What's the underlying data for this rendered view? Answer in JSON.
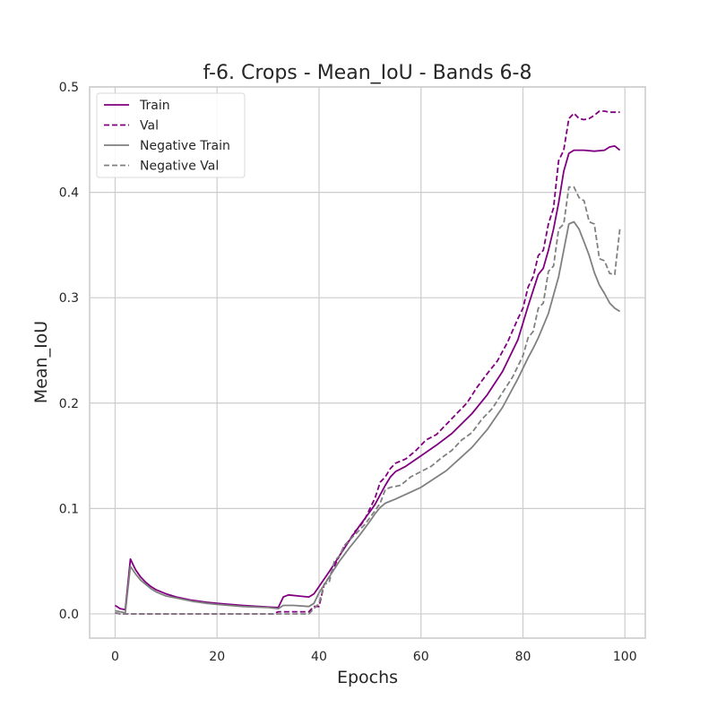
{
  "chart_data": {
    "type": "line",
    "title": "f-6. Crops - Mean_IoU - Bands 6-8",
    "xlabel": "Epochs",
    "ylabel": "Mean_IoU",
    "xlim": [
      -5,
      104
    ],
    "ylim": [
      -0.023,
      0.5
    ],
    "xticks": [
      0,
      20,
      40,
      60,
      80,
      100
    ],
    "xtick_labels": [
      "0",
      "20",
      "40",
      "60",
      "80",
      "100"
    ],
    "yticks": [
      0.0,
      0.1,
      0.2,
      0.3,
      0.4,
      0.5
    ],
    "ytick_labels": [
      "0.0",
      "0.1",
      "0.2",
      "0.3",
      "0.4",
      "0.5"
    ],
    "grid": true,
    "legend_position": "top-left",
    "series": [
      {
        "name": "Train",
        "color": "#800080",
        "dash": "solid",
        "points": [
          [
            0,
            0.008
          ],
          [
            1,
            0.005
          ],
          [
            2,
            0.004
          ],
          [
            3,
            0.052
          ],
          [
            4,
            0.042
          ],
          [
            5,
            0.035
          ],
          [
            6,
            0.03
          ],
          [
            7,
            0.026
          ],
          [
            8,
            0.023
          ],
          [
            10,
            0.019
          ],
          [
            12,
            0.016
          ],
          [
            15,
            0.013
          ],
          [
            18,
            0.011
          ],
          [
            20,
            0.01
          ],
          [
            25,
            0.008
          ],
          [
            30,
            0.0065
          ],
          [
            32,
            0.006
          ],
          [
            33,
            0.016
          ],
          [
            34,
            0.018
          ],
          [
            36,
            0.017
          ],
          [
            38,
            0.016
          ],
          [
            39,
            0.019
          ],
          [
            40,
            0.026
          ],
          [
            42,
            0.04
          ],
          [
            44,
            0.055
          ],
          [
            46,
            0.07
          ],
          [
            48,
            0.084
          ],
          [
            50,
            0.097
          ],
          [
            51,
            0.104
          ],
          [
            52,
            0.113
          ],
          [
            53,
            0.122
          ],
          [
            54,
            0.13
          ],
          [
            55,
            0.135
          ],
          [
            57,
            0.14
          ],
          [
            60,
            0.15
          ],
          [
            63,
            0.16
          ],
          [
            66,
            0.171
          ],
          [
            70,
            0.19
          ],
          [
            73,
            0.208
          ],
          [
            76,
            0.23
          ],
          [
            79,
            0.26
          ],
          [
            81,
            0.292
          ],
          [
            83,
            0.322
          ],
          [
            84,
            0.328
          ],
          [
            85,
            0.345
          ],
          [
            86,
            0.365
          ],
          [
            87,
            0.39
          ],
          [
            88,
            0.42
          ],
          [
            89,
            0.437
          ],
          [
            90,
            0.44
          ],
          [
            92,
            0.44
          ],
          [
            94,
            0.439
          ],
          [
            96,
            0.44
          ],
          [
            97,
            0.443
          ],
          [
            98,
            0.444
          ],
          [
            99,
            0.44
          ]
        ]
      },
      {
        "name": "Val",
        "color": "#800080",
        "dash": "dashed",
        "points": [
          [
            0,
            0.001
          ],
          [
            1,
            0.0
          ],
          [
            2,
            0.0
          ],
          [
            3,
            0.0
          ],
          [
            10,
            0.0
          ],
          [
            20,
            0.0
          ],
          [
            30,
            0.0
          ],
          [
            31,
            0.0
          ],
          [
            32,
            0.002
          ],
          [
            35,
            0.002
          ],
          [
            37,
            0.002
          ],
          [
            38,
            0.002
          ],
          [
            39,
            0.007
          ],
          [
            40,
            0.007
          ],
          [
            41,
            0.028
          ],
          [
            42,
            0.035
          ],
          [
            43,
            0.045
          ],
          [
            44,
            0.055
          ],
          [
            45,
            0.065
          ],
          [
            46,
            0.07
          ],
          [
            47,
            0.078
          ],
          [
            48,
            0.083
          ],
          [
            49,
            0.09
          ],
          [
            50,
            0.1
          ],
          [
            51,
            0.11
          ],
          [
            52,
            0.125
          ],
          [
            53,
            0.13
          ],
          [
            54,
            0.138
          ],
          [
            55,
            0.143
          ],
          [
            57,
            0.147
          ],
          [
            59,
            0.155
          ],
          [
            61,
            0.165
          ],
          [
            63,
            0.17
          ],
          [
            65,
            0.18
          ],
          [
            67,
            0.19
          ],
          [
            69,
            0.2
          ],
          [
            71,
            0.215
          ],
          [
            73,
            0.228
          ],
          [
            75,
            0.24
          ],
          [
            77,
            0.258
          ],
          [
            79,
            0.28
          ],
          [
            80,
            0.29
          ],
          [
            81,
            0.31
          ],
          [
            82,
            0.32
          ],
          [
            83,
            0.34
          ],
          [
            84,
            0.345
          ],
          [
            85,
            0.37
          ],
          [
            86,
            0.385
          ],
          [
            87,
            0.43
          ],
          [
            88,
            0.44
          ],
          [
            89,
            0.47
          ],
          [
            90,
            0.475
          ],
          [
            91,
            0.47
          ],
          [
            92,
            0.469
          ],
          [
            93,
            0.47
          ],
          [
            94,
            0.473
          ],
          [
            95,
            0.477
          ],
          [
            96,
            0.477
          ],
          [
            97,
            0.476
          ],
          [
            98,
            0.476
          ],
          [
            99,
            0.476
          ]
        ]
      },
      {
        "name": "Negative Train",
        "color": "#808080",
        "dash": "solid",
        "points": [
          [
            0,
            0.003
          ],
          [
            1,
            0.002
          ],
          [
            2,
            0.001
          ],
          [
            3,
            0.045
          ],
          [
            4,
            0.038
          ],
          [
            5,
            0.032
          ],
          [
            6,
            0.028
          ],
          [
            7,
            0.024
          ],
          [
            8,
            0.021
          ],
          [
            10,
            0.017
          ],
          [
            12,
            0.015
          ],
          [
            15,
            0.012
          ],
          [
            18,
            0.01
          ],
          [
            20,
            0.009
          ],
          [
            25,
            0.007
          ],
          [
            30,
            0.006
          ],
          [
            32,
            0.005
          ],
          [
            33,
            0.008
          ],
          [
            35,
            0.008
          ],
          [
            38,
            0.007
          ],
          [
            39,
            0.01
          ],
          [
            40,
            0.02
          ],
          [
            42,
            0.035
          ],
          [
            44,
            0.05
          ],
          [
            46,
            0.063
          ],
          [
            48,
            0.075
          ],
          [
            50,
            0.088
          ],
          [
            51,
            0.095
          ],
          [
            52,
            0.101
          ],
          [
            53,
            0.105
          ],
          [
            55,
            0.109
          ],
          [
            60,
            0.12
          ],
          [
            65,
            0.136
          ],
          [
            70,
            0.158
          ],
          [
            73,
            0.175
          ],
          [
            76,
            0.196
          ],
          [
            79,
            0.223
          ],
          [
            81,
            0.243
          ],
          [
            82,
            0.252
          ],
          [
            83,
            0.262
          ],
          [
            85,
            0.285
          ],
          [
            87,
            0.32
          ],
          [
            88,
            0.345
          ],
          [
            89,
            0.37
          ],
          [
            90,
            0.372
          ],
          [
            91,
            0.365
          ],
          [
            92,
            0.353
          ],
          [
            93,
            0.34
          ],
          [
            94,
            0.324
          ],
          [
            95,
            0.312
          ],
          [
            96,
            0.304
          ],
          [
            97,
            0.295
          ],
          [
            98,
            0.29
          ],
          [
            99,
            0.287
          ]
        ]
      },
      {
        "name": "Negative Val",
        "color": "#808080",
        "dash": "dashed",
        "points": [
          [
            0,
            0.001
          ],
          [
            1,
            0.0
          ],
          [
            2,
            0.0
          ],
          [
            3,
            0.0
          ],
          [
            10,
            0.0
          ],
          [
            20,
            0.0
          ],
          [
            30,
            0.0
          ],
          [
            35,
            0.0
          ],
          [
            38,
            0.0
          ],
          [
            39,
            0.005
          ],
          [
            40,
            0.01
          ],
          [
            41,
            0.028
          ],
          [
            42,
            0.03
          ],
          [
            43,
            0.05
          ],
          [
            44,
            0.055
          ],
          [
            45,
            0.065
          ],
          [
            47,
            0.075
          ],
          [
            49,
            0.085
          ],
          [
            51,
            0.098
          ],
          [
            52,
            0.105
          ],
          [
            53,
            0.118
          ],
          [
            54,
            0.12
          ],
          [
            56,
            0.122
          ],
          [
            58,
            0.13
          ],
          [
            60,
            0.135
          ],
          [
            62,
            0.14
          ],
          [
            64,
            0.148
          ],
          [
            66,
            0.155
          ],
          [
            68,
            0.165
          ],
          [
            70,
            0.172
          ],
          [
            72,
            0.185
          ],
          [
            74,
            0.195
          ],
          [
            76,
            0.21
          ],
          [
            78,
            0.225
          ],
          [
            80,
            0.245
          ],
          [
            81,
            0.262
          ],
          [
            82,
            0.268
          ],
          [
            83,
            0.29
          ],
          [
            84,
            0.295
          ],
          [
            85,
            0.325
          ],
          [
            86,
            0.33
          ],
          [
            87,
            0.365
          ],
          [
            88,
            0.37
          ],
          [
            89,
            0.405
          ],
          [
            90,
            0.405
          ],
          [
            91,
            0.395
          ],
          [
            92,
            0.392
          ],
          [
            93,
            0.372
          ],
          [
            94,
            0.37
          ],
          [
            95,
            0.337
          ],
          [
            96,
            0.335
          ],
          [
            97,
            0.323
          ],
          [
            98,
            0.322
          ],
          [
            99,
            0.365
          ]
        ]
      }
    ]
  }
}
